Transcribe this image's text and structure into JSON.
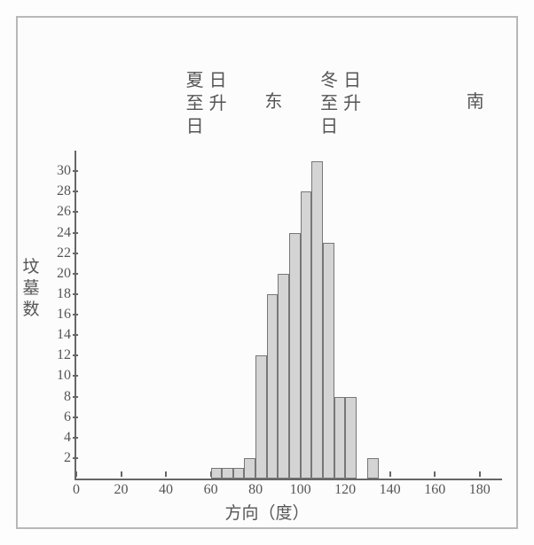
{
  "chart": {
    "type": "histogram",
    "background_color": "#fcfcfc",
    "border_color": "#b8b8b8",
    "axis_color": "#666666",
    "bar_fill": "#d4d4d4",
    "bar_border": "#777777",
    "text_color": "#555555",
    "font_family": "SimSun",
    "axis_fontsize": 16,
    "label_fontsize": 19,
    "annot_fontsize": 20,
    "xlabel": "方向（度）",
    "ylabel": "坟墓数",
    "xlim": [
      0,
      190
    ],
    "ylim": [
      0,
      32
    ],
    "xticks": [
      0,
      20,
      40,
      60,
      80,
      100,
      120,
      140,
      160,
      180
    ],
    "yticks": [
      2,
      4,
      6,
      8,
      10,
      12,
      14,
      16,
      18,
      20,
      22,
      24,
      26,
      28,
      30
    ],
    "bin_width": 5,
    "bars": [
      {
        "x": 60,
        "count": 1
      },
      {
        "x": 65,
        "count": 1
      },
      {
        "x": 70,
        "count": 1
      },
      {
        "x": 75,
        "count": 2
      },
      {
        "x": 80,
        "count": 12
      },
      {
        "x": 85,
        "count": 18
      },
      {
        "x": 90,
        "count": 20
      },
      {
        "x": 95,
        "count": 24
      },
      {
        "x": 100,
        "count": 28
      },
      {
        "x": 105,
        "count": 31
      },
      {
        "x": 110,
        "count": 23
      },
      {
        "x": 115,
        "count": 8
      },
      {
        "x": 120,
        "count": 8
      },
      {
        "x": 130,
        "count": 2
      }
    ],
    "annotations": [
      {
        "text": "夏日\n至升\n日",
        "x": 60,
        "vertical_pair": true
      },
      {
        "text": "东",
        "x": 90,
        "vertical_pair": false
      },
      {
        "text": "冬日\n至升\n日",
        "x": 120,
        "vertical_pair": true
      },
      {
        "text": "南",
        "x": 180,
        "vertical_pair": false
      }
    ]
  }
}
